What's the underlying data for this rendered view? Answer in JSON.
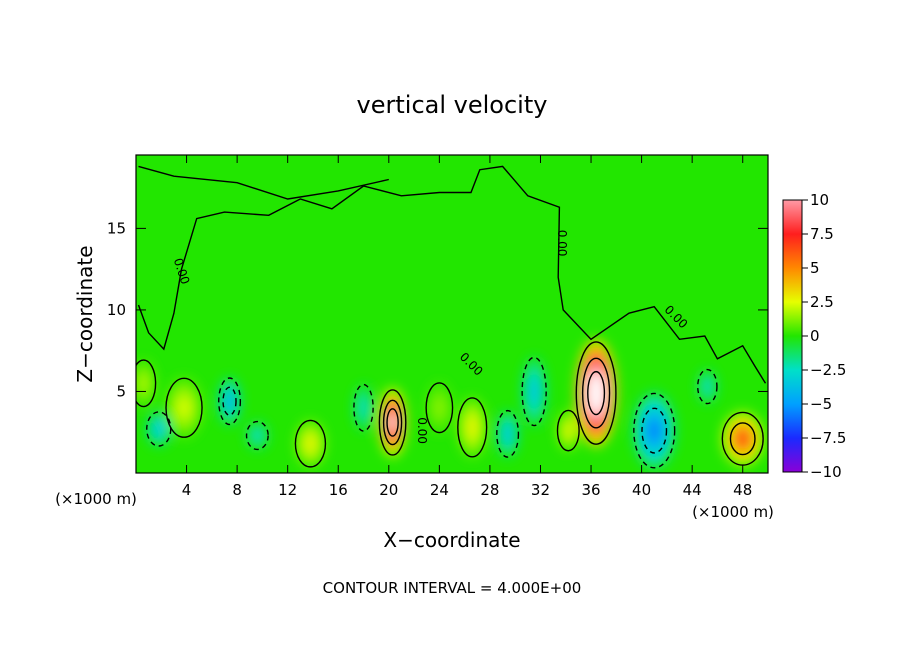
{
  "chart_data": {
    "type": "heatmap",
    "title": "vertical velocity",
    "xlabel": "X−coordinate",
    "ylabel": "Z−coordinate",
    "x_unit_left": "(×1000 m)",
    "x_unit_right": "(×1000 m)",
    "xlim": [
      0,
      50
    ],
    "ylim": [
      0,
      19.5
    ],
    "xticks": [
      4,
      8,
      12,
      16,
      20,
      24,
      28,
      32,
      36,
      40,
      44,
      48
    ],
    "yticks": [
      5,
      10,
      15
    ],
    "contour_interval_text": "CONTOUR INTERVAL = 4.000E+00",
    "contour_labels": [
      {
        "text": "0.00",
        "x": 3.3,
        "y": 12.3,
        "rotate": 72
      },
      {
        "text": "0.00",
        "x": 22.3,
        "y": 2.6,
        "rotate": 90
      },
      {
        "text": "0.00",
        "x": 26.3,
        "y": 6.5,
        "rotate": 45
      },
      {
        "text": "0.00",
        "x": 33.4,
        "y": 14.1,
        "rotate": 90
      },
      {
        "text": "0.00",
        "x": 42.5,
        "y": 9.4,
        "rotate": 45
      }
    ],
    "colorbar": {
      "min": -10,
      "max": 10,
      "tick_labels": [
        "10",
        "7.5",
        "5",
        "2.5",
        "0",
        "−2.5",
        "−5",
        "−7.5",
        "−10"
      ],
      "colors": [
        "#ff9aa6",
        "#ff1e1e",
        "#ff8800",
        "#e6ff00",
        "#22e600",
        "#00e0c8",
        "#00a0ff",
        "#1a2aff",
        "#8a00d8"
      ]
    },
    "features": [
      {
        "x": 20.3,
        "y": 3.1,
        "w": 2.2,
        "h": 4.2,
        "value": 12
      },
      {
        "x": 36.4,
        "y": 4.9,
        "w": 3.3,
        "h": 6.6,
        "value": 16
      },
      {
        "x": 48.0,
        "y": 2.1,
        "w": 3.4,
        "h": 3.4,
        "value": 7
      },
      {
        "x": 41.0,
        "y": 2.6,
        "w": 3.4,
        "h": 4.8,
        "value": -6
      },
      {
        "x": 7.4,
        "y": 4.4,
        "w": 1.8,
        "h": 3.0,
        "value": -5
      },
      {
        "x": 31.5,
        "y": 5.0,
        "w": 2.0,
        "h": 4.4,
        "value": -4
      },
      {
        "x": 29.4,
        "y": 2.4,
        "w": 1.8,
        "h": 3.0,
        "value": -4
      },
      {
        "x": 1.8,
        "y": 2.7,
        "w": 2.0,
        "h": 2.2,
        "value": -4
      },
      {
        "x": 9.6,
        "y": 2.3,
        "w": 1.8,
        "h": 1.8,
        "value": -3
      },
      {
        "x": 3.8,
        "y": 4.0,
        "w": 3.0,
        "h": 3.8,
        "value": 2.5
      },
      {
        "x": 13.8,
        "y": 1.8,
        "w": 2.5,
        "h": 3.0,
        "value": 3
      },
      {
        "x": 26.6,
        "y": 2.8,
        "w": 2.4,
        "h": 3.8,
        "value": 3
      },
      {
        "x": 34.2,
        "y": 2.6,
        "w": 1.8,
        "h": 2.6,
        "value": 3
      },
      {
        "x": 18.0,
        "y": 4.0,
        "w": 1.6,
        "h": 3.0,
        "value": -3
      },
      {
        "x": 45.2,
        "y": 5.3,
        "w": 1.6,
        "h": 2.2,
        "value": -3
      },
      {
        "x": 0.6,
        "y": 5.5,
        "w": 2.0,
        "h": 3.0,
        "value": 2
      },
      {
        "x": 24.0,
        "y": 4.0,
        "w": 2.2,
        "h": 3.2,
        "value": 1.5
      }
    ]
  }
}
